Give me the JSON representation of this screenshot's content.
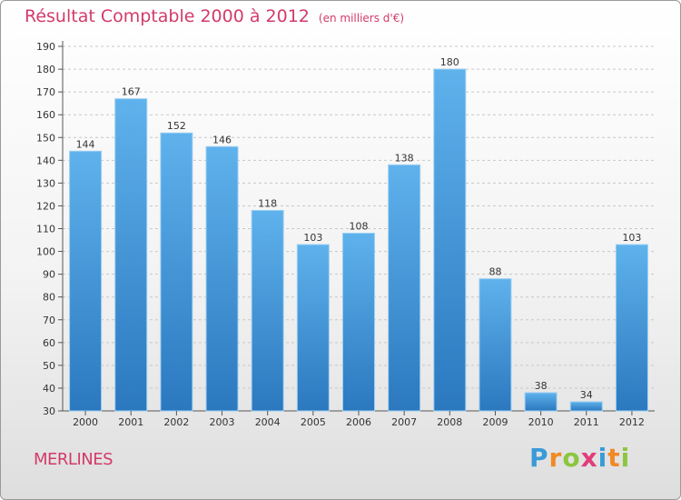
{
  "title": "Résultat Comptable 2000 à 2012",
  "subtitle": "(en milliers d'€)",
  "commune": "MERLINES",
  "brand": {
    "name": "Proxiti",
    "letters": [
      "P",
      "r",
      "o",
      "x",
      "i",
      "t",
      "i"
    ],
    "colors": [
      "#3a9ad9",
      "#f08a24",
      "#8cc63f",
      "#e23d7a",
      "#3a9ad9",
      "#f08a24",
      "#8cc63f"
    ]
  },
  "colors": {
    "bar_top": "#5fb2ec",
    "bar_bottom": "#2b78bf",
    "title": "#d33a6a",
    "grid": "#c8c8c8"
  },
  "chart_data": {
    "type": "bar",
    "title": "Résultat Comptable 2000 à 2012",
    "subtitle": "(en milliers d'€)",
    "categories": [
      "2000",
      "2001",
      "2002",
      "2003",
      "2004",
      "2005",
      "2006",
      "2007",
      "2008",
      "2009",
      "2010",
      "2011",
      "2012"
    ],
    "values": [
      144,
      167,
      152,
      146,
      118,
      103,
      108,
      138,
      180,
      88,
      38,
      34,
      103
    ],
    "ylim": [
      30,
      190
    ],
    "yticks": [
      30,
      40,
      50,
      60,
      70,
      80,
      90,
      100,
      110,
      120,
      130,
      140,
      150,
      160,
      170,
      180,
      190
    ],
    "grid": true,
    "data_labels": true
  }
}
